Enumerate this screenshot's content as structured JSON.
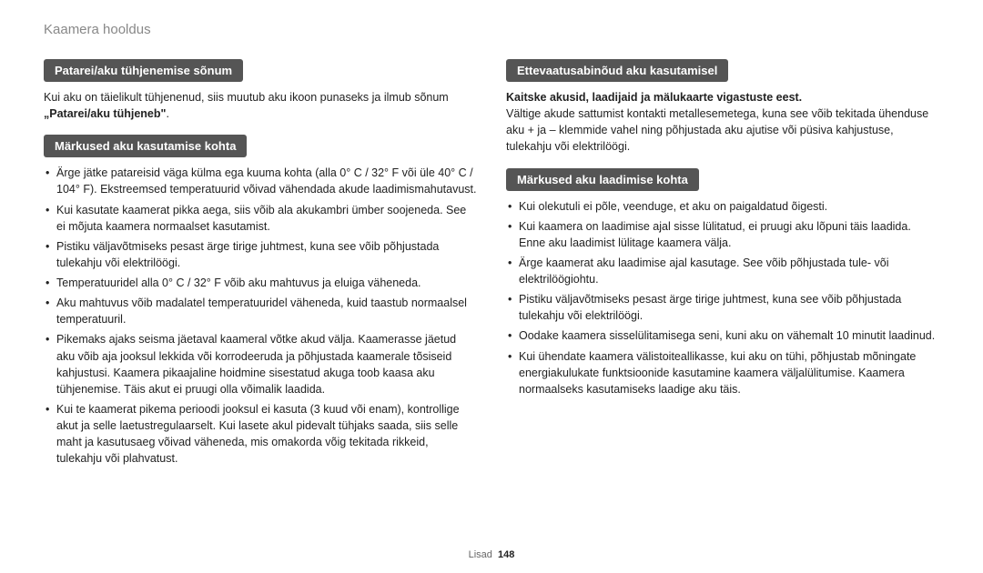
{
  "page": {
    "title": "Kaamera hooldus",
    "footer_label": "Lisad",
    "footer_page": "148"
  },
  "left": {
    "h1": "Patarei/aku tühjenemise sõnum",
    "p1a": "Kui aku on täielikult tühjenenud, siis muutub aku ikoon punaseks ja ilmub sõnum ",
    "p1b": "„Patarei/aku tühjeneb\"",
    "p1c": ".",
    "h2": "Märkused aku kasutamise kohta",
    "bullets": [
      "Ärge jätke patareisid väga külma ega kuuma kohta (alla 0° C / 32° F või üle 40° C / 104° F). Ekstreemsed temperatuurid võivad vähendada akude laadimismahutavust.",
      "Kui kasutate kaamerat pikka aega, siis võib ala akukambri ümber soojeneda. See ei mõjuta kaamera normaalset kasutamist.",
      "Pistiku väljavõtmiseks pesast ärge tirige juhtmest, kuna see võib põhjustada tulekahju või elektrilöögi.",
      "Temperatuuridel alla 0° C / 32° F võib aku mahtuvus ja eluiga väheneda.",
      "Aku mahtuvus võib madalatel temperatuuridel väheneda, kuid taastub normaalsel temperatuuril.",
      "Pikemaks ajaks seisma jäetaval kaameral võtke akud välja. Kaamerasse jäetud aku võib aja jooksul lekkida või korrodeeruda ja põhjustada kaamerale tõsiseid kahjustusi. Kaamera pikaajaline hoidmine sisestatud akuga toob kaasa aku tühjenemise. Täis akut ei pruugi olla võimalik laadida.",
      "Kui te kaamerat pikema perioodi jooksul ei kasuta (3 kuud või enam), kontrollige akut ja selle laetustregulaarselt. Kui lasete akul pidevalt tühjaks saada, siis selle maht ja kasutusaeg võivad väheneda, mis omakorda võig tekitada rikkeid, tulekahju või plahvatust."
    ]
  },
  "right": {
    "h1": "Ettevaatusabinõud aku kasutamisel",
    "p1_bold": "Kaitske akusid, laadijaid ja mälukaarte vigastuste eest.",
    "p1_rest": "Vältige akude sattumist kontakti metallesemetega, kuna see võib tekitada ühenduse aku + ja – klemmide vahel ning põhjustada aku ajutise või püsiva kahjustuse, tulekahju või elektrilöögi.",
    "h2": "Märkused aku laadimise kohta",
    "bullets": [
      "Kui olekutuli ei põle, veenduge, et aku on paigaldatud õigesti.",
      "Kui kaamera on laadimise ajal sisse lülitatud, ei pruugi aku lõpuni täis laadida. Enne aku laadimist lülitage kaamera välja.",
      "Ärge kaamerat aku laadimise ajal kasutage. See võib põhjustada tule- või elektrilöögiohtu.",
      "Pistiku väljavõtmiseks pesast ärge tirige juhtmest, kuna see võib põhjustada tulekahju või elektrilöögi.",
      "Oodake kaamera sisselülitamisega seni, kuni aku on vähemalt 10 minutit laadinud.",
      "Kui ühendate kaamera välistoiteallikasse, kui aku on tühi, põhjustab mõningate energiakulukate funktsioonide kasutamine kaamera väljalülitumise. Kaamera normaalseks kasutamiseks laadige aku täis."
    ]
  }
}
